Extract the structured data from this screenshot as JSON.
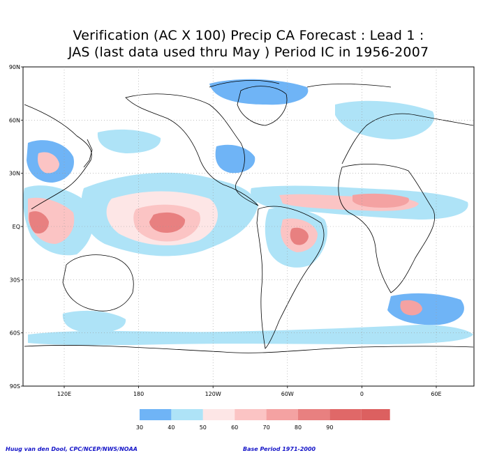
{
  "title": {
    "line1": "Verification (AC X 100) Precip CA Forecast : Lead 1 :",
    "line2": "JAS (last data used thru May ) Period IC in 1956-2007"
  },
  "axes": {
    "lat_labels": [
      "90N",
      "60N",
      "30N",
      "EQ",
      "30S",
      "60S",
      "90S"
    ],
    "lon_labels": [
      "120E",
      "180",
      "120W",
      "60W",
      "0",
      "60E"
    ]
  },
  "legend": {
    "values": [
      "30",
      "40",
      "50",
      "60",
      "70",
      "80",
      "90"
    ],
    "colors": [
      "#6fb4f6",
      "#aee3f7",
      "#fde6e6",
      "#fbc4c4",
      "#f4a2a2",
      "#e88080",
      "#e06868"
    ]
  },
  "credits": {
    "left": "Huug van den Dool, CPC/NCEP/NWS/NOAA",
    "right": "Base Period 1971-2000"
  },
  "colors": {
    "land_outline": "#000000",
    "grid": "#9a9a9a",
    "frame": "#000000"
  }
}
